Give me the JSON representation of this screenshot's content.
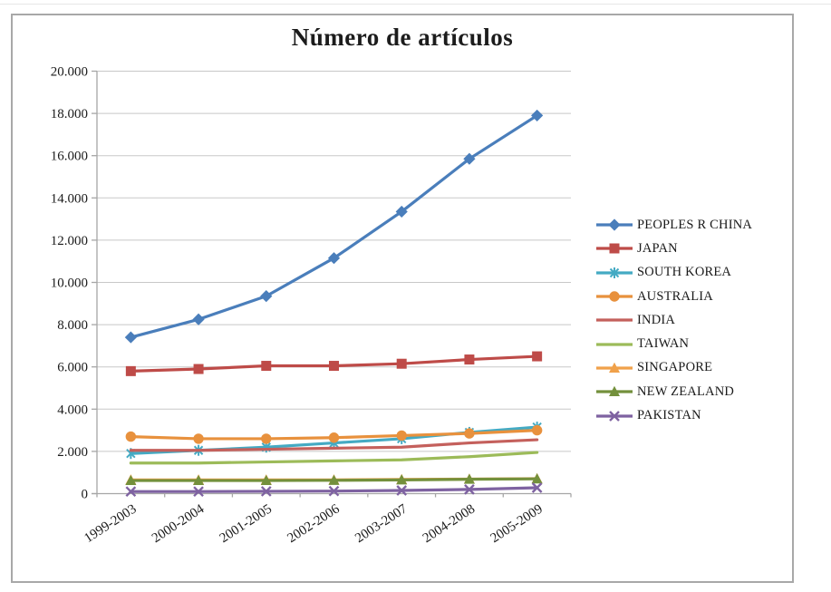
{
  "chart_data": {
    "type": "line",
    "title": "Número de artículos",
    "categories": [
      "1999-2003",
      "2000-2004",
      "2001-2005",
      "2002-2006",
      "2003-2007",
      "2004-2008",
      "2005-2009"
    ],
    "series": [
      {
        "name": "PEOPLES R CHINA",
        "color": "#4A7EBB",
        "marker": "diamond",
        "values": [
          7400,
          8250,
          9350,
          11150,
          13350,
          15850,
          17900
        ]
      },
      {
        "name": "JAPAN",
        "color": "#BE4B48",
        "marker": "square",
        "values": [
          5800,
          5900,
          6050,
          6050,
          6150,
          6350,
          6500
        ]
      },
      {
        "name": "SOUTH KOREA",
        "color": "#44AAC3",
        "marker": "asterisk",
        "values": [
          1900,
          2050,
          2200,
          2400,
          2600,
          2900,
          3150
        ]
      },
      {
        "name": "AUSTRALIA",
        "color": "#E8913D",
        "marker": "circle",
        "values": [
          2700,
          2600,
          2600,
          2650,
          2750,
          2850,
          3000
        ]
      },
      {
        "name": "INDIA",
        "color": "#C4605C",
        "marker": "none",
        "values": [
          2050,
          2050,
          2100,
          2150,
          2200,
          2400,
          2550
        ]
      },
      {
        "name": "TAIWAN",
        "color": "#9CBB59",
        "marker": "none",
        "values": [
          1450,
          1450,
          1500,
          1550,
          1600,
          1750,
          1950
        ]
      },
      {
        "name": "SINGAPORE",
        "color": "#F0A14A",
        "marker": "triangle",
        "values": [
          650,
          650,
          650,
          650,
          670,
          690,
          710
        ]
      },
      {
        "name": "NEW ZEALAND",
        "color": "#73903C",
        "marker": "triangle",
        "values": [
          620,
          620,
          620,
          630,
          650,
          680,
          700
        ]
      },
      {
        "name": "PAKISTAN",
        "color": "#7E62A1",
        "marker": "x",
        "values": [
          100,
          100,
          110,
          120,
          150,
          200,
          280
        ]
      }
    ],
    "ylim": [
      0,
      20000
    ],
    "ytick_values": [
      0,
      2000,
      4000,
      6000,
      8000,
      10000,
      12000,
      14000,
      16000,
      18000,
      20000
    ],
    "ytick_labels": [
      "0",
      "2.000",
      "4.000",
      "6.000",
      "8.000",
      "10.000",
      "12.000",
      "14.000",
      "16.000",
      "18.000",
      "20.000"
    ],
    "grid": "horizontal",
    "legend_position": "right",
    "axis_color": "#a6a6a6",
    "gridline_color": "#c8c8c8",
    "text_color": "#1a1a1a",
    "frame_border_color": "#a8a8a8"
  }
}
